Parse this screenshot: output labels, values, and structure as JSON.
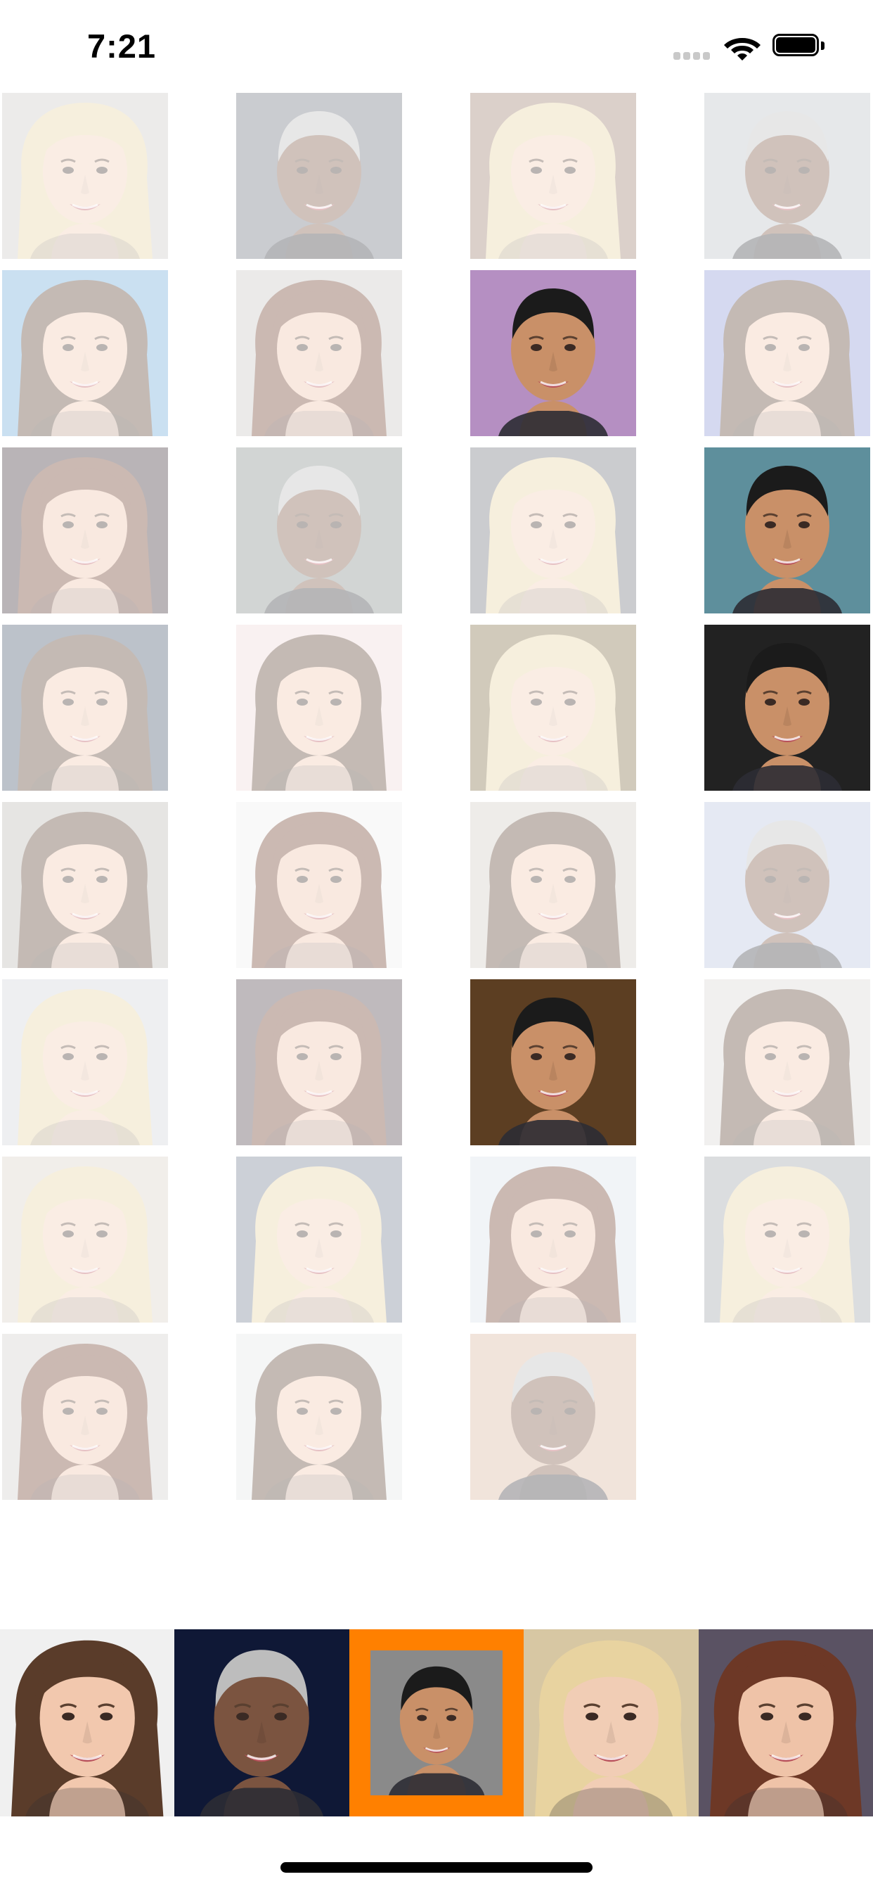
{
  "status_bar": {
    "time": "7:21",
    "icons": [
      "cellular-signal-icon",
      "wifi-icon",
      "battery-icon"
    ]
  },
  "grid": {
    "columns": 4,
    "tiles": [
      {
        "person": "blonde-woman",
        "bg": "#c9c7c4",
        "selected": false
      },
      {
        "person": "grey-hair-man",
        "bg": "#6b6f7c",
        "selected": false
      },
      {
        "person": "blonde-woman",
        "bg": "#9a7c6a",
        "selected": false
      },
      {
        "person": "grey-hair-man",
        "bg": "#b9bfc6",
        "selected": false
      },
      {
        "person": "brunette-woman",
        "bg": "#6aa8d8",
        "selected": false
      },
      {
        "person": "auburn-woman",
        "bg": "#c7c5c2",
        "selected": false
      },
      {
        "person": "dark-hair-man",
        "bg": "#b58fc2",
        "selected": true
      },
      {
        "person": "brunette-woman",
        "bg": "#8895d6",
        "selected": false
      },
      {
        "person": "auburn-woman",
        "bg": "#3a2c33",
        "selected": false
      },
      {
        "person": "grey-hair-man",
        "bg": "#7f8a86",
        "selected": false
      },
      {
        "person": "blonde-woman",
        "bg": "#6d7078",
        "selected": false
      },
      {
        "person": "dark-hair-man",
        "bg": "#5e8f9c",
        "selected": true
      },
      {
        "person": "brunette-woman",
        "bg": "#43536b",
        "selected": false
      },
      {
        "person": "brunette-woman",
        "bg": "#efd8d8",
        "selected": false
      },
      {
        "person": "blonde-woman",
        "bg": "#7d6a3e",
        "selected": false
      },
      {
        "person": "dark-hair-man",
        "bg": "#222222",
        "selected": true
      },
      {
        "person": "brunette-woman",
        "bg": "#b9b6b1",
        "selected": false
      },
      {
        "person": "auburn-woman",
        "bg": "#efefef",
        "selected": false
      },
      {
        "person": "brunette-woman",
        "bg": "#cfcac3",
        "selected": false
      },
      {
        "person": "grey-hair-man",
        "bg": "#b7c2df",
        "selected": false
      },
      {
        "person": "blonde-woman",
        "bg": "#cfd4d8",
        "selected": false
      },
      {
        "person": "auburn-woman",
        "bg": "#4a3b45",
        "selected": false
      },
      {
        "person": "dark-hair-man",
        "bg": "#5c3e22",
        "selected": true
      },
      {
        "person": "brunette-woman",
        "bg": "#d9d6d2",
        "selected": false
      },
      {
        "person": "blonde-woman",
        "bg": "#d8d0c4",
        "selected": false
      },
      {
        "person": "blonde-woman",
        "bg": "#6f7a8e",
        "selected": false
      },
      {
        "person": "auburn-woman",
        "bg": "#d9e2ea",
        "selected": false
      },
      {
        "person": "blonde-woman",
        "bg": "#9aa0a4",
        "selected": false
      },
      {
        "person": "auburn-woman",
        "bg": "#cfcdca",
        "selected": false
      },
      {
        "person": "brunette-woman",
        "bg": "#e4e6e8",
        "selected": false
      },
      {
        "person": "grey-hair-man",
        "bg": "#d9b59a",
        "selected": false
      }
    ]
  },
  "carousel": {
    "items": [
      {
        "person": "brunette-woman",
        "bg": "#f0f0f0",
        "selected": false
      },
      {
        "person": "grey-hair-man",
        "bg": "#0f1836",
        "selected": false
      },
      {
        "person": "dark-hair-man",
        "bg": "#8a8a8a",
        "selected": true
      },
      {
        "person": "blonde-woman",
        "bg": "#d7c7a3",
        "selected": false
      },
      {
        "person": "auburn-woman",
        "bg": "#5a5263",
        "selected": false
      }
    ],
    "selection_color": "#ff8000"
  },
  "colors": {
    "background": "#ffffff",
    "accent": "#ff8000",
    "status_dots": "#c9c9c9"
  },
  "people": {
    "blonde-woman": {
      "skin": "#f1cdb5",
      "hair": "#e8d3a0",
      "hairstyle": "long"
    },
    "grey-hair-man": {
      "skin": "#7b5440",
      "hair": "#bdbdbd",
      "hairstyle": "short"
    },
    "brunette-woman": {
      "skin": "#f2c8ae",
      "hair": "#5a3c2a",
      "hairstyle": "long"
    },
    "auburn-woman": {
      "skin": "#efc3a8",
      "hair": "#6d3826",
      "hairstyle": "long"
    },
    "dark-hair-man": {
      "skin": "#c99068",
      "hair": "#1b1b1b",
      "hairstyle": "short"
    }
  }
}
